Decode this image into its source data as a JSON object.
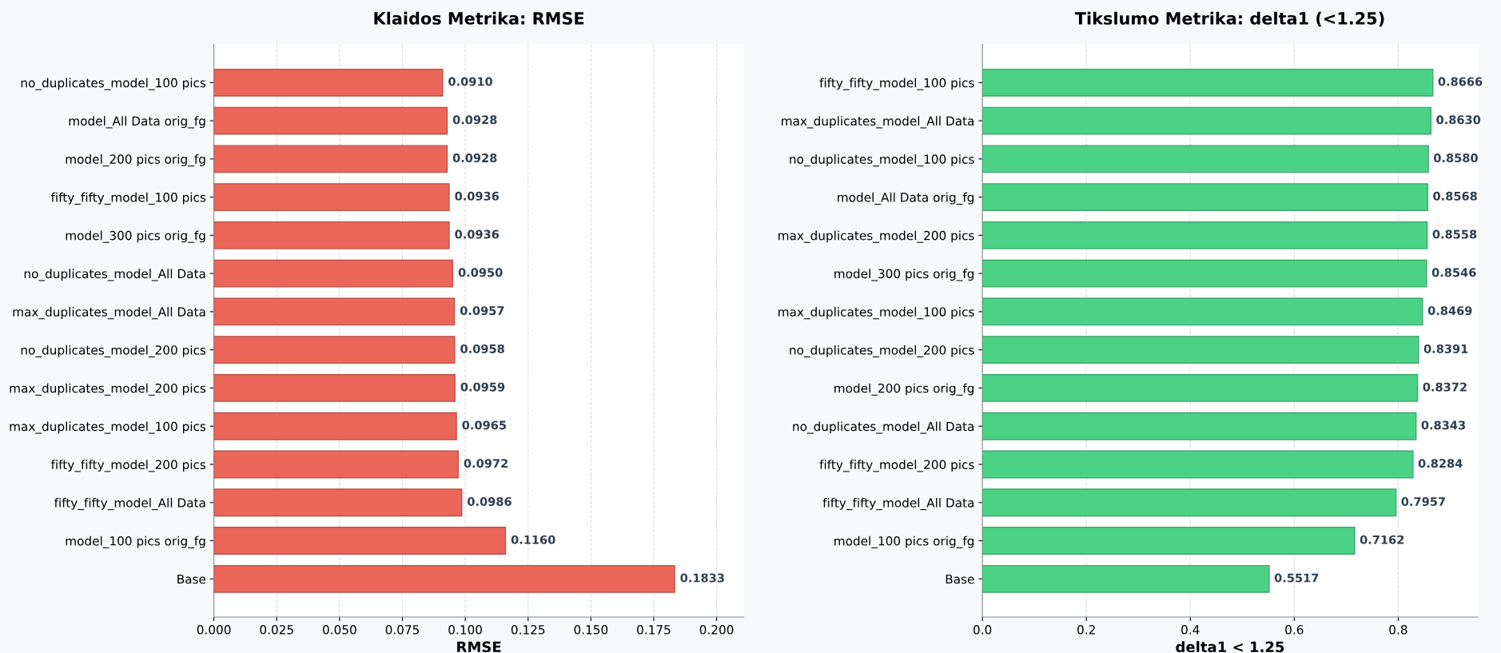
{
  "chart_data": [
    {
      "type": "bar",
      "orientation": "horizontal",
      "title": "Klaidos Metrika: RMSE",
      "xlabel": "RMSE",
      "categories": [
        "no_duplicates_model_100 pics",
        "model_All Data orig_fg",
        "model_200 pics orig_fg",
        "fifty_fifty_model_100 pics",
        "model_300 pics orig_fg",
        "no_duplicates_model_All Data",
        "max_duplicates_model_All Data",
        "no_duplicates_model_200 pics",
        "max_duplicates_model_200 pics",
        "max_duplicates_model_100 pics",
        "fifty_fifty_model_200 pics",
        "fifty_fifty_model_All Data",
        "model_100 pics orig_fg",
        "Base"
      ],
      "values": [
        0.091,
        0.0928,
        0.0928,
        0.0936,
        0.0936,
        0.095,
        0.0957,
        0.0958,
        0.0959,
        0.0965,
        0.0972,
        0.0986,
        0.116,
        0.1833
      ],
      "color": "#eb6759",
      "value_labels": [
        "0.0910",
        "0.0928",
        "0.0928",
        "0.0936",
        "0.0936",
        "0.0950",
        "0.0957",
        "0.0958",
        "0.0959",
        "0.0965",
        "0.0972",
        "0.0986",
        "0.1160",
        "0.1833"
      ],
      "grid": "x",
      "xlim": [
        0,
        0.2108
      ],
      "xticks": [
        {
          "value": 0,
          "label": "0.000"
        },
        {
          "value": 0.025,
          "label": "0.025"
        },
        {
          "value": 0.05,
          "label": "0.050"
        },
        {
          "value": 0.075,
          "label": "0.075"
        },
        {
          "value": 0.1,
          "label": "0.100"
        },
        {
          "value": 0.125,
          "label": "0.125"
        },
        {
          "value": 0.15,
          "label": "0.150"
        },
        {
          "value": 0.175,
          "label": "0.175"
        },
        {
          "value": 0.2,
          "label": "0.200"
        }
      ]
    },
    {
      "type": "bar",
      "orientation": "horizontal",
      "title": "Tikslumo Metrika: delta1 (<1.25)",
      "xlabel": "delta1 < 1.25",
      "categories": [
        "fifty_fifty_model_100 pics",
        "max_duplicates_model_All Data",
        "no_duplicates_model_100 pics",
        "model_All Data orig_fg",
        "max_duplicates_model_200 pics",
        "model_300 pics orig_fg",
        "max_duplicates_model_100 pics",
        "no_duplicates_model_200 pics",
        "model_200 pics orig_fg",
        "no_duplicates_model_All Data",
        "fifty_fifty_model_200 pics",
        "fifty_fifty_model_All Data",
        "model_100 pics orig_fg",
        "Base"
      ],
      "values": [
        0.8666,
        0.863,
        0.858,
        0.8568,
        0.8558,
        0.8546,
        0.8469,
        0.8391,
        0.8372,
        0.8343,
        0.8284,
        0.7957,
        0.7162,
        0.5517
      ],
      "color": "#4bd286",
      "value_labels": [
        "0.8666",
        "0.8630",
        "0.8580",
        "0.8568",
        "0.8558",
        "0.8546",
        "0.8469",
        "0.8391",
        "0.8372",
        "0.8343",
        "0.8284",
        "0.7957",
        "0.7162",
        "0.5517"
      ],
      "grid": "x",
      "xlim": [
        0,
        0.953
      ],
      "xticks": [
        {
          "value": 0,
          "label": "0.0"
        },
        {
          "value": 0.2,
          "label": "0.2"
        },
        {
          "value": 0.4,
          "label": "0.4"
        },
        {
          "value": 0.6,
          "label": "0.6"
        },
        {
          "value": 0.8,
          "label": "0.8"
        }
      ]
    }
  ]
}
